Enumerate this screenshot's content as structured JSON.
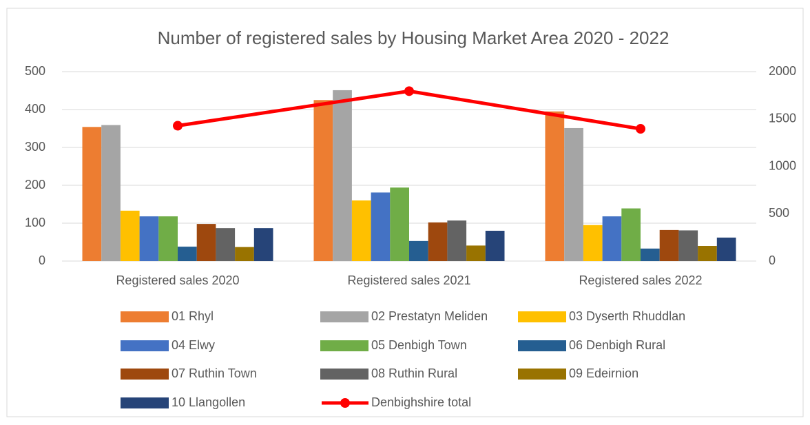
{
  "chart_data": {
    "type": "bar",
    "title": "Number of registered sales by Housing Market Area 2020 - 2022",
    "categories": [
      "Registered sales 2020",
      "Registered sales 2021",
      "Registered sales 2022"
    ],
    "series": [
      {
        "name": "01 Rhyl",
        "color": "#ed7d31",
        "values": [
          354,
          425,
          395
        ]
      },
      {
        "name": "02 Prestatyn Meliden",
        "color": "#a5a5a5",
        "values": [
          359,
          451,
          351
        ]
      },
      {
        "name": "03 Dyserth Rhuddlan",
        "color": "#ffc000",
        "values": [
          133,
          160,
          95
        ]
      },
      {
        "name": "04 Elwy",
        "color": "#4472c4",
        "values": [
          118,
          181,
          118
        ]
      },
      {
        "name": "05 Denbigh Town",
        "color": "#70ad47",
        "values": [
          118,
          194,
          139
        ]
      },
      {
        "name": "06 Denbigh Rural",
        "color": "#255e91",
        "values": [
          38,
          53,
          33
        ]
      },
      {
        "name": "07 Ruthin Town",
        "color": "#9e480e",
        "values": [
          98,
          102,
          82
        ]
      },
      {
        "name": "08 Ruthin Rural",
        "color": "#636363",
        "values": [
          87,
          107,
          81
        ]
      },
      {
        "name": "09 Edeirnion",
        "color": "#997300",
        "values": [
          37,
          41,
          40
        ]
      },
      {
        "name": "10 Llangollen",
        "color": "#264478",
        "values": [
          87,
          80,
          62
        ]
      },
      {
        "name": "Denbighshire total",
        "color": "#ff0000",
        "type": "line",
        "axis": "y2",
        "values": [
          1429,
          1794,
          1396
        ]
      }
    ],
    "ylim": [
      0,
      500
    ],
    "yticks": [
      0,
      100,
      200,
      300,
      400,
      500
    ],
    "y2lim": [
      0,
      2000
    ],
    "y2ticks": [
      0,
      500,
      1000,
      1500,
      2000
    ],
    "grid": true,
    "legend": "bottom"
  }
}
